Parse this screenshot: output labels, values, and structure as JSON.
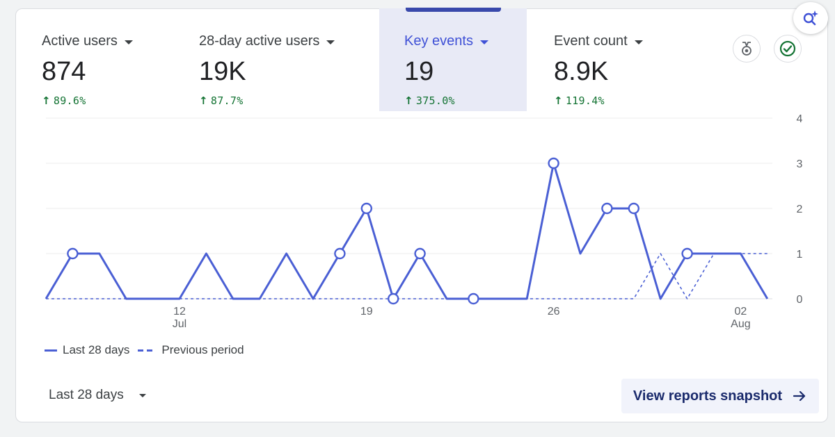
{
  "metrics": [
    {
      "label": "Active users",
      "value": "874",
      "change": "89.6%"
    },
    {
      "label": "28-day active users",
      "value": "19K",
      "change": "87.7%"
    },
    {
      "label": "Key events",
      "value": "19",
      "change": "375.0%"
    },
    {
      "label": "Event count",
      "value": "8.9K",
      "change": "119.4%"
    }
  ],
  "colors": {
    "accent": "#4a5fd4",
    "positive": "#137333",
    "selected_bg": "#e8eaf6"
  },
  "icons": {
    "insights": "sparkle-search-icon",
    "badge": "medal-icon",
    "status": "check-circle-icon"
  },
  "legend": {
    "current": "Last 28 days",
    "previous": "Previous period"
  },
  "footer": {
    "date_range": "Last 28 days",
    "view_link": "View reports snapshot"
  },
  "chart_data": {
    "type": "line",
    "x_tick_labels": [
      {
        "day": "12",
        "month": "Jul"
      },
      {
        "day": "19",
        "month": ""
      },
      {
        "day": "26",
        "month": ""
      },
      {
        "day": "02",
        "month": "Aug"
      }
    ],
    "x_tick_index": [
      5,
      12,
      19,
      26
    ],
    "y_ticks": [
      0,
      1,
      2,
      3,
      4
    ],
    "ylim": [
      0,
      4
    ],
    "grid": true,
    "legend_position": "bottom-left",
    "series": [
      {
        "name": "Last 28 days",
        "style": "solid",
        "values": [
          0,
          1,
          1,
          0,
          0,
          0,
          1,
          0,
          0,
          1,
          0,
          1,
          2,
          0,
          1,
          0,
          0,
          0,
          0,
          3,
          1,
          2,
          2,
          0,
          1,
          1,
          1,
          0
        ],
        "markers": [
          1,
          11,
          12,
          13,
          14,
          16,
          19,
          21,
          22,
          24
        ]
      },
      {
        "name": "Previous period",
        "style": "dashed",
        "values": [
          0,
          0,
          0,
          0,
          0,
          0,
          0,
          0,
          0,
          0,
          0,
          0,
          0,
          0,
          0,
          0,
          0,
          0,
          0,
          0,
          0,
          0,
          0,
          1,
          0,
          1,
          1,
          1
        ]
      }
    ]
  }
}
